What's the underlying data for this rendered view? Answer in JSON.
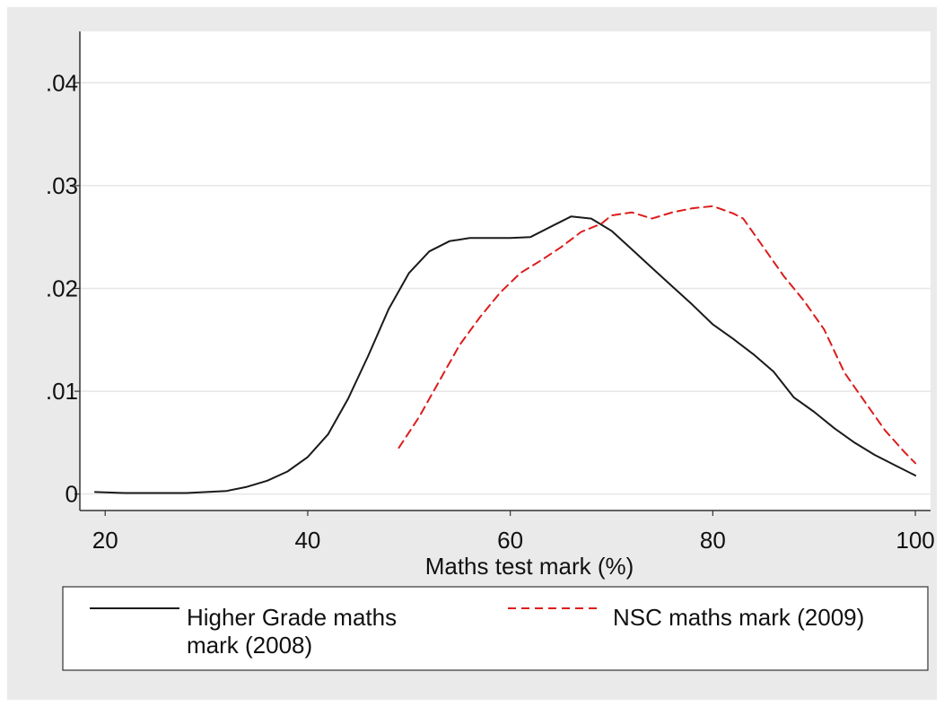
{
  "chart_data": {
    "type": "line",
    "title": "",
    "xlabel": "Maths test mark (%)",
    "ylabel": "",
    "xlim": [
      17.5,
      101.5
    ],
    "ylim": [
      -0.0016,
      0.045
    ],
    "x_ticks": [
      20,
      40,
      60,
      80,
      100
    ],
    "x_tick_labels": [
      "20",
      "40",
      "60",
      "80",
      "100"
    ],
    "y_ticks": [
      0,
      0.01,
      0.02,
      0.03,
      0.04
    ],
    "y_tick_labels": [
      "0",
      ".01",
      ".02",
      ".03",
      ".04"
    ],
    "grid": true,
    "legend_position": "bottom",
    "series": [
      {
        "name": "Higher Grade maths mark (2008)",
        "color": "#1a1a1a",
        "dash": "solid",
        "points": [
          [
            19,
            0.0002
          ],
          [
            22,
            0.0001
          ],
          [
            25,
            0.0001
          ],
          [
            28,
            0.0001
          ],
          [
            30,
            0.0002
          ],
          [
            32,
            0.0003
          ],
          [
            34,
            0.0007
          ],
          [
            36,
            0.0013
          ],
          [
            38,
            0.0022
          ],
          [
            40,
            0.0036
          ],
          [
            42,
            0.0058
          ],
          [
            44,
            0.0093
          ],
          [
            46,
            0.0135
          ],
          [
            48,
            0.018
          ],
          [
            50,
            0.0215
          ],
          [
            52,
            0.0236
          ],
          [
            54,
            0.0246
          ],
          [
            56,
            0.0249
          ],
          [
            58,
            0.0249
          ],
          [
            60,
            0.0249
          ],
          [
            62,
            0.025
          ],
          [
            64,
            0.026
          ],
          [
            66,
            0.027
          ],
          [
            68,
            0.0268
          ],
          [
            70,
            0.0256
          ],
          [
            72,
            0.0238
          ],
          [
            74,
            0.022
          ],
          [
            76,
            0.0202
          ],
          [
            78,
            0.0184
          ],
          [
            80,
            0.0165
          ],
          [
            82,
            0.0151
          ],
          [
            84,
            0.0136
          ],
          [
            86,
            0.0119
          ],
          [
            88,
            0.0094
          ],
          [
            90,
            0.008
          ],
          [
            92,
            0.0064
          ],
          [
            94,
            0.005
          ],
          [
            96,
            0.0038
          ],
          [
            98,
            0.0028
          ],
          [
            100,
            0.0018
          ]
        ]
      },
      {
        "name": "NSC maths mark (2009)",
        "color": "#dd1c1c",
        "dash": "dashed",
        "points": [
          [
            49,
            0.0045
          ],
          [
            51,
            0.0075
          ],
          [
            53,
            0.011
          ],
          [
            55,
            0.0145
          ],
          [
            57,
            0.0172
          ],
          [
            59,
            0.0196
          ],
          [
            61,
            0.0215
          ],
          [
            63,
            0.0227
          ],
          [
            65,
            0.024
          ],
          [
            67,
            0.0255
          ],
          [
            69,
            0.0263
          ],
          [
            70,
            0.0271
          ],
          [
            72,
            0.0274
          ],
          [
            74,
            0.0268
          ],
          [
            76,
            0.0274
          ],
          [
            78,
            0.0278
          ],
          [
            80,
            0.028
          ],
          [
            82,
            0.0273
          ],
          [
            83,
            0.0268
          ],
          [
            85,
            0.024
          ],
          [
            87,
            0.0212
          ],
          [
            89,
            0.0188
          ],
          [
            91,
            0.016
          ],
          [
            93,
            0.0118
          ],
          [
            95,
            0.009
          ],
          [
            97,
            0.0062
          ],
          [
            99,
            0.004
          ],
          [
            100,
            0.003
          ]
        ]
      }
    ]
  },
  "colors": {
    "outer_background": "#eaeaea",
    "plot_background": "#ffffff",
    "gridline": "#e6e6e6",
    "axis": "#333333"
  }
}
